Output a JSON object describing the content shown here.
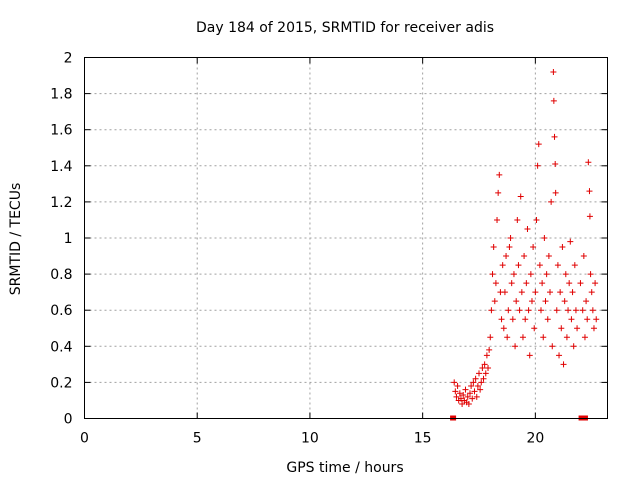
{
  "chart_data": {
    "type": "scatter",
    "title": "Day 184 of 2015, SRMTID for receiver adis",
    "xlabel": "GPS time / hours",
    "ylabel": "SRMTID / TECUs",
    "xlim": [
      0,
      23.2
    ],
    "ylim": [
      0,
      2
    ],
    "xticks": [
      0,
      5,
      10,
      15,
      20
    ],
    "yticks": [
      0,
      0.2,
      0.4,
      0.6,
      0.8,
      1,
      1.2,
      1.4,
      1.6,
      1.8,
      2
    ],
    "xtick_labels": [
      "0",
      "5",
      "10",
      "15",
      "20"
    ],
    "ytick_labels": [
      "0",
      "0.2",
      "0.4",
      "0.6",
      "0.8",
      "1",
      "1.2",
      "1.4",
      "1.6",
      "1.8",
      "2"
    ],
    "grid": true,
    "marker_color": "#e00000",
    "series": [
      {
        "name": "SRMTID",
        "marker": "plus",
        "points": [
          [
            16.4,
            0.2
          ],
          [
            16.45,
            0.15
          ],
          [
            16.5,
            0.12
          ],
          [
            16.55,
            0.18
          ],
          [
            16.6,
            0.1
          ],
          [
            16.65,
            0.14
          ],
          [
            16.7,
            0.11
          ],
          [
            16.75,
            0.08
          ],
          [
            16.8,
            0.13
          ],
          [
            16.85,
            0.1
          ],
          [
            16.9,
            0.16
          ],
          [
            16.95,
            0.09
          ],
          [
            17.0,
            0.12
          ],
          [
            17.05,
            0.08
          ],
          [
            17.1,
            0.14
          ],
          [
            17.15,
            0.18
          ],
          [
            17.2,
            0.11
          ],
          [
            17.25,
            0.2
          ],
          [
            17.3,
            0.15
          ],
          [
            17.35,
            0.22
          ],
          [
            17.4,
            0.12
          ],
          [
            17.45,
            0.18
          ],
          [
            17.5,
            0.25
          ],
          [
            17.55,
            0.16
          ],
          [
            17.6,
            0.2
          ],
          [
            17.65,
            0.28
          ],
          [
            17.7,
            0.22
          ],
          [
            17.75,
            0.3
          ],
          [
            17.8,
            0.25
          ],
          [
            17.85,
            0.35
          ],
          [
            17.9,
            0.28
          ],
          [
            17.95,
            0.38
          ],
          [
            18.0,
            0.45
          ],
          [
            18.05,
            0.6
          ],
          [
            18.1,
            0.8
          ],
          [
            18.15,
            0.95
          ],
          [
            18.2,
            0.65
          ],
          [
            18.25,
            0.75
          ],
          [
            18.3,
            1.1
          ],
          [
            18.35,
            1.25
          ],
          [
            18.4,
            1.35
          ],
          [
            18.45,
            0.7
          ],
          [
            18.5,
            0.55
          ],
          [
            18.55,
            0.85
          ],
          [
            18.6,
            0.5
          ],
          [
            18.65,
            0.7
          ],
          [
            18.7,
            0.9
          ],
          [
            18.75,
            0.45
          ],
          [
            18.8,
            0.6
          ],
          [
            18.85,
            0.95
          ],
          [
            18.9,
            1.0
          ],
          [
            18.95,
            0.75
          ],
          [
            19.0,
            0.55
          ],
          [
            19.05,
            0.8
          ],
          [
            19.1,
            0.4
          ],
          [
            19.15,
            0.65
          ],
          [
            19.2,
            1.1
          ],
          [
            19.25,
            0.85
          ],
          [
            19.3,
            0.6
          ],
          [
            19.35,
            1.23
          ],
          [
            19.4,
            0.7
          ],
          [
            19.45,
            0.45
          ],
          [
            19.5,
            0.9
          ],
          [
            19.55,
            0.55
          ],
          [
            19.6,
            0.75
          ],
          [
            19.65,
            1.05
          ],
          [
            19.7,
            0.6
          ],
          [
            19.75,
            0.35
          ],
          [
            19.8,
            0.8
          ],
          [
            19.85,
            0.65
          ],
          [
            19.9,
            0.95
          ],
          [
            19.95,
            0.5
          ],
          [
            20.0,
            0.7
          ],
          [
            20.05,
            1.1
          ],
          [
            20.1,
            1.4
          ],
          [
            20.15,
            1.52
          ],
          [
            20.2,
            0.85
          ],
          [
            20.25,
            0.6
          ],
          [
            20.3,
            0.75
          ],
          [
            20.35,
            0.45
          ],
          [
            20.4,
            1.0
          ],
          [
            20.45,
            0.65
          ],
          [
            20.5,
            0.8
          ],
          [
            20.55,
            0.55
          ],
          [
            20.6,
            0.9
          ],
          [
            20.65,
            0.7
          ],
          [
            20.7,
            1.2
          ],
          [
            20.75,
            0.4
          ],
          [
            20.8,
            1.92
          ],
          [
            20.82,
            1.76
          ],
          [
            20.85,
            1.56
          ],
          [
            20.88,
            1.41
          ],
          [
            20.9,
            1.25
          ],
          [
            20.95,
            0.6
          ],
          [
            21.0,
            0.85
          ],
          [
            21.05,
            0.35
          ],
          [
            21.1,
            0.7
          ],
          [
            21.15,
            0.5
          ],
          [
            21.2,
            0.95
          ],
          [
            21.25,
            0.3
          ],
          [
            21.3,
            0.65
          ],
          [
            21.35,
            0.8
          ],
          [
            21.4,
            0.45
          ],
          [
            21.45,
            0.6
          ],
          [
            21.5,
            0.75
          ],
          [
            21.55,
            0.98
          ],
          [
            21.6,
            0.55
          ],
          [
            21.65,
            0.7
          ],
          [
            21.7,
            0.4
          ],
          [
            21.75,
            0.85
          ],
          [
            21.8,
            0.6
          ],
          [
            21.85,
            0.5
          ],
          [
            22.0,
            0.75
          ],
          [
            22.1,
            0.6
          ],
          [
            22.15,
            0.9
          ],
          [
            22.2,
            0.45
          ],
          [
            22.25,
            0.65
          ],
          [
            22.3,
            0.55
          ],
          [
            22.35,
            1.42
          ],
          [
            22.4,
            1.26
          ],
          [
            22.42,
            1.12
          ],
          [
            22.45,
            0.8
          ],
          [
            22.5,
            0.7
          ],
          [
            22.55,
            0.6
          ],
          [
            22.6,
            0.5
          ],
          [
            22.65,
            0.75
          ],
          [
            22.7,
            0.55
          ]
        ]
      }
    ],
    "gap_markers": [
      16.35,
      22.05,
      22.2
    ]
  }
}
